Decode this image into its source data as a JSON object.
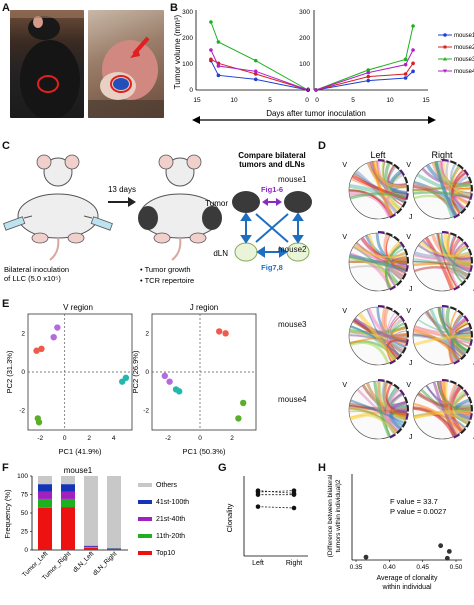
{
  "panels": {
    "A": "A",
    "B": "B",
    "C": "C",
    "D": "D",
    "E": "E",
    "F": "F",
    "G": "G",
    "H": "H"
  },
  "colors": {
    "mouse1": "#1f3fd6",
    "mouse2": "#d62020",
    "mouse3": "#1fb01f",
    "mouse4": "#b020c8",
    "red": "#e41a1c",
    "blue": "#1f6fc0"
  },
  "panel_b": {
    "ylabel": "Tumor volume (mm³)",
    "xlabel": "Days after tumor inoculation",
    "left_yticks": [
      "0",
      "100",
      "200",
      "300"
    ],
    "right_yticks": [
      "0",
      "100",
      "200",
      "300"
    ],
    "left_xticks": [
      "15",
      "10",
      "5",
      "0"
    ],
    "right_xticks": [
      "0",
      "5",
      "10",
      "15"
    ],
    "legend": [
      "mouse1",
      "mouse2",
      "mouse3",
      "mouse4"
    ]
  },
  "panel_c": {
    "days": "13 days",
    "compare_title": "Compare bilateral\ntumors and dLNs",
    "tumor": "Tumor",
    "dln": "dLN",
    "fig16": "Fig1-6",
    "fig78": "Fig7,8",
    "inoculation": "Bilateral inoculation\nof LLC (5.0 x10⁵)",
    "bullet1": "• Tumor growth",
    "bullet2": "• TCR repertoire"
  },
  "panel_d": {
    "left": "Left",
    "right": "Right",
    "v": "V",
    "j": "J",
    "mice": [
      "mouse1",
      "mouse2",
      "mouse3",
      "mouse4"
    ]
  },
  "panel_e": {
    "v_title": "V region",
    "j_title": "J region",
    "v_xlabel": "PC1 (41.9%)",
    "v_ylabel": "PC2 (31.3%)",
    "j_xlabel": "PC1 (50.3%)",
    "j_ylabel": "PC2 (26.9%)",
    "v_xticks": [
      "-2",
      "0",
      "2",
      "4"
    ],
    "v_yticks": [
      "-2",
      "0",
      "2"
    ],
    "j_xticks": [
      "-2",
      "0",
      "2"
    ],
    "j_yticks": [
      "-2",
      "0",
      "2"
    ]
  },
  "chart_data": [
    {
      "type": "line",
      "panel": "B-left",
      "xlabel": "Days after tumor inoculation",
      "ylabel": "Tumor volume (mm³)",
      "xlim": [
        15,
        0
      ],
      "ylim": [
        0,
        300
      ],
      "x": [
        13,
        12,
        7,
        0
      ],
      "series": [
        {
          "name": "mouse1",
          "values": [
            110,
            55,
            40,
            0
          ]
        },
        {
          "name": "mouse2",
          "values": [
            115,
            100,
            60,
            0
          ]
        },
        {
          "name": "mouse3",
          "values": [
            255,
            180,
            110,
            0
          ]
        },
        {
          "name": "mouse4",
          "values": [
            150,
            90,
            70,
            0
          ]
        }
      ]
    },
    {
      "type": "line",
      "panel": "B-right",
      "xlim": [
        0,
        15
      ],
      "ylim": [
        0,
        300
      ],
      "x": [
        0,
        7,
        12,
        13
      ],
      "series": [
        {
          "name": "mouse1",
          "values": [
            0,
            35,
            45,
            70
          ]
        },
        {
          "name": "mouse2",
          "values": [
            0,
            50,
            60,
            100
          ]
        },
        {
          "name": "mouse3",
          "values": [
            0,
            75,
            115,
            240
          ]
        },
        {
          "name": "mouse4",
          "values": [
            0,
            65,
            95,
            150
          ]
        }
      ]
    },
    {
      "type": "bar",
      "panel": "F",
      "title": "mouse1",
      "ylabel": "Frequency (%)",
      "ylim": [
        0,
        100
      ],
      "yticks": [
        "0",
        "25",
        "50",
        "75",
        "100"
      ],
      "categories": [
        "Tumor_Left",
        "Tumor_Right",
        "dLN_Left",
        "dLN_Right"
      ],
      "series": [
        {
          "name": "Top10",
          "color": "#ee1111",
          "values": [
            57,
            58,
            3,
            1.5
          ]
        },
        {
          "name": "11th-20th",
          "color": "#1fb01f",
          "values": [
            12,
            11,
            0.8,
            0.4
          ]
        },
        {
          "name": "21st-40th",
          "color": "#a020c0",
          "values": [
            10,
            10,
            0.8,
            0.4
          ]
        },
        {
          "name": "41st-100th",
          "color": "#1533b8",
          "values": [
            10,
            10,
            1.2,
            0.6
          ]
        },
        {
          "name": "Others",
          "color": "#c8c8c8",
          "values": [
            11,
            11,
            94.2,
            97.1
          ]
        }
      ],
      "legend_order": [
        "Others",
        "41st-100th",
        "21st-40th",
        "11th-20th",
        "Top10"
      ]
    },
    {
      "type": "scatter",
      "panel": "G",
      "ylabel": "Clonality",
      "categories": [
        "Left",
        "Right"
      ],
      "ylim": [
        0,
        0.6
      ],
      "pairs": [
        [
          0.49,
          0.47
        ],
        [
          0.48,
          0.49
        ],
        [
          0.46,
          0.46
        ],
        [
          0.37,
          0.36
        ]
      ]
    },
    {
      "type": "scatter",
      "panel": "H",
      "xlabel": "Average of clonality\nwithin individual",
      "ylabel": "(Difference between bilateral\ntumors within individual)2",
      "xticks": [
        "0.35",
        "0.40",
        "0.45",
        "0.50"
      ],
      "xlim": [
        0.35,
        0.5
      ],
      "points": [
        [
          0.365,
          0.0005
        ],
        [
          0.477,
          0.0025
        ],
        [
          0.487,
          0.0003
        ],
        [
          0.49,
          0.0015
        ]
      ],
      "annotation_f": "F value = 33.7",
      "annotation_p": "P value = 0.0027"
    },
    {
      "type": "scatter",
      "panel": "E-V",
      "title": "V region",
      "xlabel": "PC1 (41.9%)",
      "ylabel": "PC2 (31.3%)",
      "xlim": [
        -3,
        5.5
      ],
      "ylim": [
        -3,
        3
      ],
      "points": [
        {
          "x": -2.3,
          "y": 1.1,
          "c": "#ef5a4a"
        },
        {
          "x": -1.9,
          "y": 1.2,
          "c": "#ef5a4a"
        },
        {
          "x": -0.6,
          "y": 2.3,
          "c": "#b36be0"
        },
        {
          "x": -0.9,
          "y": 1.8,
          "c": "#b36be0"
        },
        {
          "x": 4.7,
          "y": -0.5,
          "c": "#22b8b0"
        },
        {
          "x": 5.0,
          "y": -0.3,
          "c": "#22b8b0"
        },
        {
          "x": -2.2,
          "y": -2.4,
          "c": "#5aae2a"
        },
        {
          "x": -2.1,
          "y": -2.6,
          "c": "#5aae2a"
        }
      ]
    },
    {
      "type": "scatter",
      "panel": "E-J",
      "title": "J region",
      "xlabel": "PC1 (50.3%)",
      "ylabel": "PC2 (26.9%)",
      "xlim": [
        -3,
        3.5
      ],
      "ylim": [
        -3,
        3
      ],
      "points": [
        {
          "x": 1.2,
          "y": 2.1,
          "c": "#ef5a4a"
        },
        {
          "x": 1.6,
          "y": 2.0,
          "c": "#ef5a4a"
        },
        {
          "x": -2.2,
          "y": -0.2,
          "c": "#b36be0"
        },
        {
          "x": -1.9,
          "y": -0.5,
          "c": "#b36be0"
        },
        {
          "x": -1.3,
          "y": -1.0,
          "c": "#22b8b0"
        },
        {
          "x": -1.5,
          "y": -0.9,
          "c": "#22b8b0"
        },
        {
          "x": 2.7,
          "y": -1.6,
          "c": "#5aae2a"
        },
        {
          "x": 2.4,
          "y": -2.4,
          "c": "#5aae2a"
        }
      ]
    }
  ]
}
